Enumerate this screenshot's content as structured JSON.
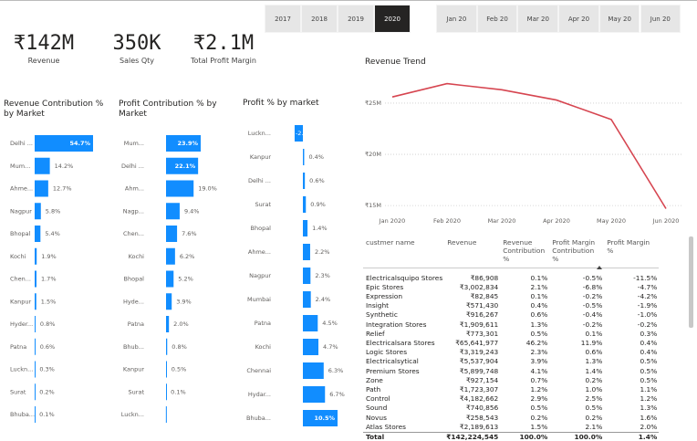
{
  "slicers": {
    "years": [
      "2017",
      "2018",
      "2019",
      "2020"
    ],
    "selected_year": 3,
    "months": [
      "Jan 20",
      "Feb 20",
      "Mar 20",
      "Apr 20",
      "May 20",
      "Jun 20"
    ]
  },
  "kpis": [
    {
      "value": "₹142M",
      "label": "Revenue"
    },
    {
      "value": "350K",
      "label": "Sales Qty"
    },
    {
      "value": "₹2.1M",
      "label": "Total Profit Margin"
    }
  ],
  "chart_data": [
    {
      "type": "bar",
      "title": "Revenue Contribution % by Market",
      "color": "#118dff",
      "categories": [
        "Delhi ...",
        "Mum...",
        "Ahme...",
        "Nagpur",
        "Bhopal",
        "Kochi",
        "Chen...",
        "Kanpur",
        "Hyder...",
        "Patna",
        "Luckn...",
        "Surat",
        "Bhuba..."
      ],
      "values": [
        54.7,
        14.2,
        12.7,
        5.8,
        5.4,
        1.9,
        1.7,
        1.5,
        0.8,
        0.6,
        0.3,
        0.2,
        0.1
      ],
      "value_labels": [
        "54.7%",
        "14.2%",
        "12.7%",
        "5.8%",
        "5.4%",
        "1.9%",
        "1.7%",
        "1.5%",
        "0.8%",
        "0.6%",
        "0.3%",
        "0.2%",
        "0.1%"
      ]
    },
    {
      "type": "bar",
      "title": "Profit Contribution % by Market",
      "color": "#118dff",
      "categories": [
        "Mum...",
        "Delhi ...",
        "Ahm...",
        "Nagp...",
        "Chen...",
        "Kochi",
        "Bhopal",
        "Hyde...",
        "Patna",
        "Bhub...",
        "Kanpur",
        "Surat",
        "Luckn..."
      ],
      "values": [
        23.9,
        22.1,
        19.0,
        9.4,
        7.6,
        6.2,
        5.2,
        3.9,
        2.0,
        0.8,
        0.5,
        0.1,
        -0.1
      ],
      "value_labels": [
        "23.9%",
        "22.1%",
        "19.0%",
        "9.4%",
        "7.6%",
        "6.2%",
        "5.2%",
        "3.9%",
        "2.0%",
        "0.8%",
        "0.5%",
        "0.1%",
        null
      ]
    },
    {
      "type": "bar",
      "title": "Profit % by market",
      "color": "#118dff",
      "categories": [
        "Luckn...",
        "Kanpur",
        "Delhi ...",
        "Surat",
        "Bhopal",
        "Ahme...",
        "Nagpur",
        "Mumbai",
        "Patna",
        "Kochi",
        "Chennai",
        "Hydar...",
        "Bhuba..."
      ],
      "values": [
        -2.5,
        0.4,
        0.6,
        0.9,
        1.4,
        2.2,
        2.3,
        2.4,
        4.5,
        4.7,
        6.3,
        6.7,
        10.5
      ],
      "value_labels": [
        "-2...",
        "0.4%",
        "0.6%",
        "0.9%",
        "1.4%",
        "2.2%",
        "2.3%",
        "2.4%",
        "4.5%",
        "4.7%",
        "6.3%",
        "6.7%",
        "10.5%"
      ]
    },
    {
      "type": "line",
      "title": "Revenue Trend",
      "color": "#d64550",
      "categories": [
        "Jan 2020",
        "Feb 2020",
        "Mar 2020",
        "Apr 2020",
        "May 2020",
        "Jun 2020"
      ],
      "values": [
        25600000,
        26900000,
        26300000,
        25300000,
        23400000,
        14700000
      ],
      "ylim": [
        14300000,
        27400000
      ],
      "yticks": [
        {
          "value": 15000000,
          "label": "₹15M"
        },
        {
          "value": 20000000,
          "label": "₹20M"
        },
        {
          "value": 25000000,
          "label": "₹25M"
        }
      ],
      "grid": true
    }
  ],
  "table": {
    "columns": [
      "custmer name",
      "Revenue",
      "Revenue Contribution %",
      "Profit Margin Contribution %",
      "Profit Margin %"
    ],
    "rows": [
      [
        "Electricalsquipo Stores",
        "₹86,908",
        "0.1%",
        "-0.5%",
        "-11.5%"
      ],
      [
        "Epic Stores",
        "₹3,002,834",
        "2.1%",
        "-6.8%",
        "-4.7%"
      ],
      [
        "Expression",
        "₹82,845",
        "0.1%",
        "-0.2%",
        "-4.2%"
      ],
      [
        "Insight",
        "₹571,430",
        "0.4%",
        "-0.5%",
        "-1.9%"
      ],
      [
        "Synthetic",
        "₹916,267",
        "0.6%",
        "-0.4%",
        "-1.0%"
      ],
      [
        "Integration Stores",
        "₹1,909,611",
        "1.3%",
        "-0.2%",
        "-0.2%"
      ],
      [
        "Relief",
        "₹773,301",
        "0.5%",
        "0.1%",
        "0.3%"
      ],
      [
        "Electricalsara Stores",
        "₹65,641,977",
        "46.2%",
        "11.9%",
        "0.4%"
      ],
      [
        "Logic Stores",
        "₹3,319,243",
        "2.3%",
        "0.6%",
        "0.4%"
      ],
      [
        "Electricalsytical",
        "₹5,537,904",
        "3.9%",
        "1.3%",
        "0.5%"
      ],
      [
        "Premium Stores",
        "₹5,899,748",
        "4.1%",
        "1.4%",
        "0.5%"
      ],
      [
        "Zone",
        "₹927,154",
        "0.7%",
        "0.2%",
        "0.5%"
      ],
      [
        "Path",
        "₹1,723,307",
        "1.2%",
        "1.0%",
        "1.1%"
      ],
      [
        "Control",
        "₹4,182,662",
        "2.9%",
        "2.5%",
        "1.2%"
      ],
      [
        "Sound",
        "₹740,856",
        "0.5%",
        "0.5%",
        "1.3%"
      ],
      [
        "Novus",
        "₹258,543",
        "0.2%",
        "0.2%",
        "1.6%"
      ],
      [
        "Atlas Stores",
        "₹2,189,613",
        "1.5%",
        "2.1%",
        "2.0%"
      ]
    ],
    "total": [
      "Total",
      "₹142,224,545",
      "100.0%",
      "100.0%",
      "1.4%"
    ]
  }
}
